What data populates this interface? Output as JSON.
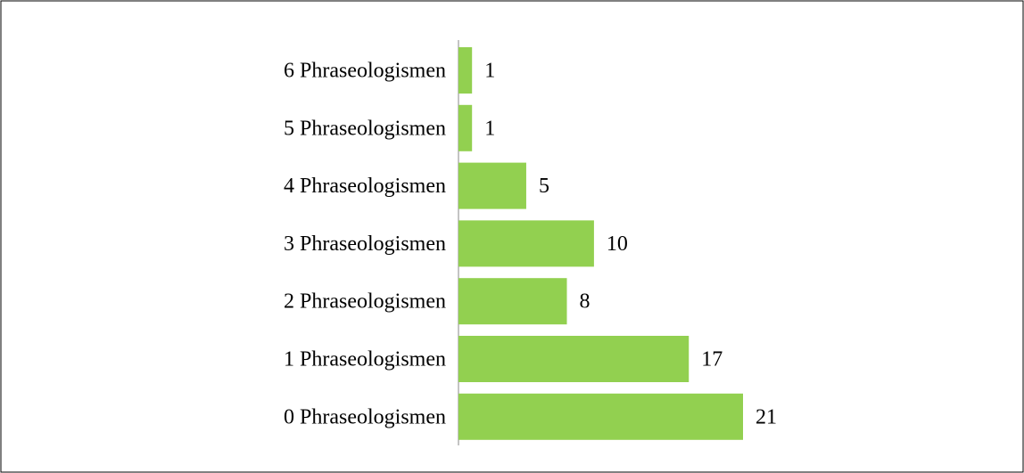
{
  "chart_data": {
    "type": "bar",
    "orientation": "horizontal",
    "categories": [
      "6 Phraseologismen",
      "5 Phraseologismen",
      "4 Phraseologismen",
      "3 Phraseologismen",
      "2 Phraseologismen",
      "1 Phraseologismen",
      "0 Phraseologismen"
    ],
    "values": [
      1,
      1,
      5,
      10,
      8,
      17,
      21
    ],
    "color": "#92d050"
  }
}
